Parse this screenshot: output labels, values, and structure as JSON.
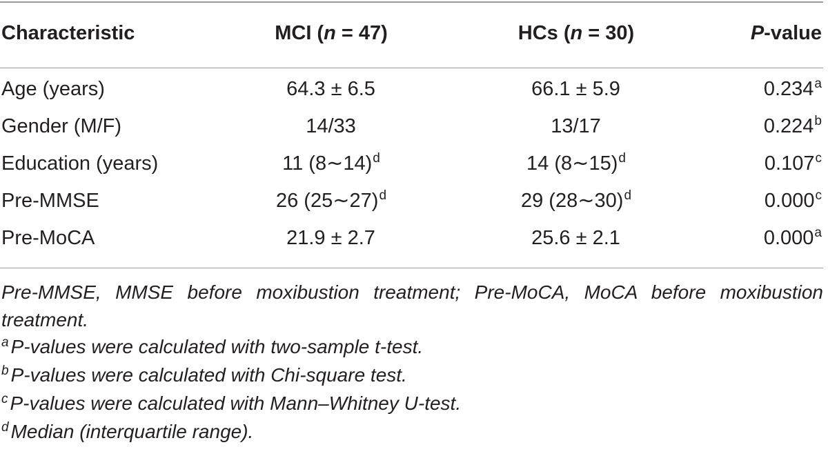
{
  "table": {
    "header": {
      "characteristic": "Characteristic",
      "mci_prefix": "MCI (",
      "mci_n": "n",
      "mci_suffix": " = 47)",
      "hcs_prefix": "HCs (",
      "hcs_n": "n",
      "hcs_suffix": " = 30)",
      "p_italic": "P",
      "p_suffix": "-value"
    },
    "rows": [
      {
        "label": "Age (years)",
        "mci": "64.3 ± 6.5",
        "mci_sup": "",
        "hcs": "66.1 ± 5.9",
        "hcs_sup": "",
        "p": "0.234",
        "p_sup": "a"
      },
      {
        "label": "Gender (M/F)",
        "mci": "14/33",
        "mci_sup": "",
        "hcs": "13/17",
        "hcs_sup": "",
        "p": "0.224",
        "p_sup": "b"
      },
      {
        "label": "Education (years)",
        "mci": "11 (8∼14)",
        "mci_sup": "d",
        "hcs": "14 (8∼15)",
        "hcs_sup": "d",
        "p": "0.107",
        "p_sup": "c"
      },
      {
        "label": "Pre-MMSE",
        "mci": "26 (25∼27)",
        "mci_sup": "d",
        "hcs": "29 (28∼30)",
        "hcs_sup": "d",
        "p": "0.000",
        "p_sup": "c"
      },
      {
        "label": "Pre-MoCA",
        "mci": "21.9 ± 2.7",
        "mci_sup": "",
        "hcs": "25.6 ± 2.1",
        "hcs_sup": "",
        "p": "0.000",
        "p_sup": "a"
      }
    ]
  },
  "footnotes": {
    "abbrev": "Pre-MMSE, MMSE before moxibustion treatment; Pre-MoCA, MoCA before moxibustion treatment.",
    "items": [
      {
        "mark": "a",
        "text": "P-values were calculated with two-sample t-test."
      },
      {
        "mark": "b",
        "text": "P-values were calculated with Chi-square test."
      },
      {
        "mark": "c",
        "text": "P-values were calculated with Mann–Whitney U-test."
      },
      {
        "mark": "d",
        "text": "Median (interquartile range)."
      }
    ]
  }
}
